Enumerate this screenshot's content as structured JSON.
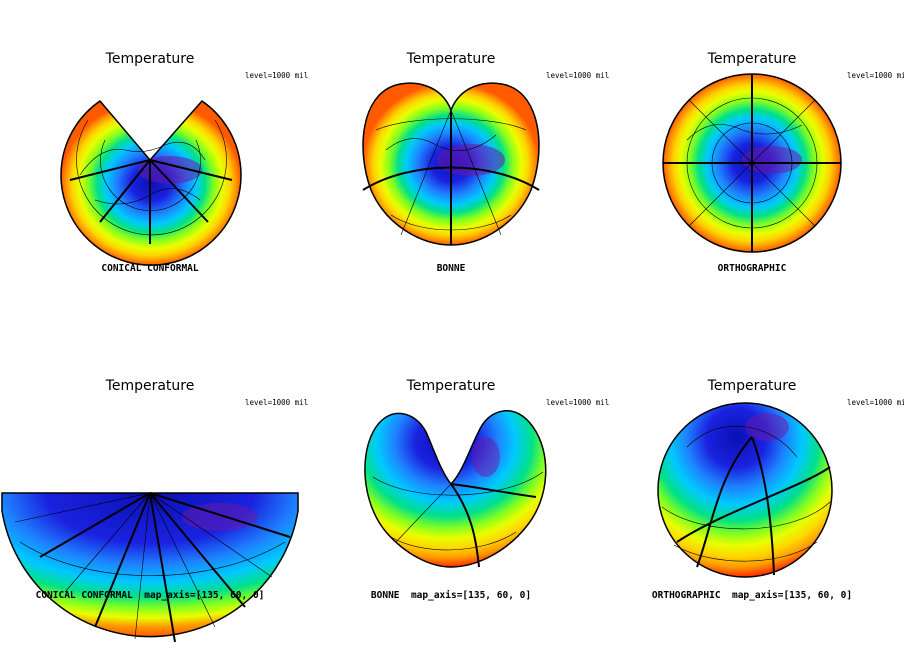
{
  "panels": [
    {
      "title": "Temperature",
      "level": "level=1000 mil",
      "projection": "CONICAL CONFORMAL"
    },
    {
      "title": "Temperature",
      "level": "level=1000 mil",
      "projection": "BONNE"
    },
    {
      "title": "Temperature",
      "level": "level=1000 mil",
      "projection": "ORTHOGRAPHIC"
    },
    {
      "title": "Temperature",
      "level": "level=1000 mil",
      "projection": "CONICAL CONFORMAL  map_axis=[135, 60, 0]"
    },
    {
      "title": "Temperature",
      "level": "level=1000 mil",
      "projection": "BONNE  map_axis=[135, 60, 0]"
    },
    {
      "title": "Temperature",
      "level": "level=1000 mil",
      "projection": "ORTHOGRAPHIC  map_axis=[135, 60, 0]"
    }
  ],
  "colors": {
    "band_outer": "#ff5a00",
    "band_2": "#ff9b00",
    "band_3": "#ffd400",
    "band_4": "#e8ff00",
    "band_5": "#80ff20",
    "band_6": "#00e08a",
    "band_7": "#00c8ff",
    "band_8": "#1e82ff",
    "band_9": "#1a22e0",
    "band_10": "#0a10b4",
    "band_cold": "#6a1aa8",
    "band_hot": "#ff1e00",
    "band_hottest": "#ff9e9e"
  }
}
